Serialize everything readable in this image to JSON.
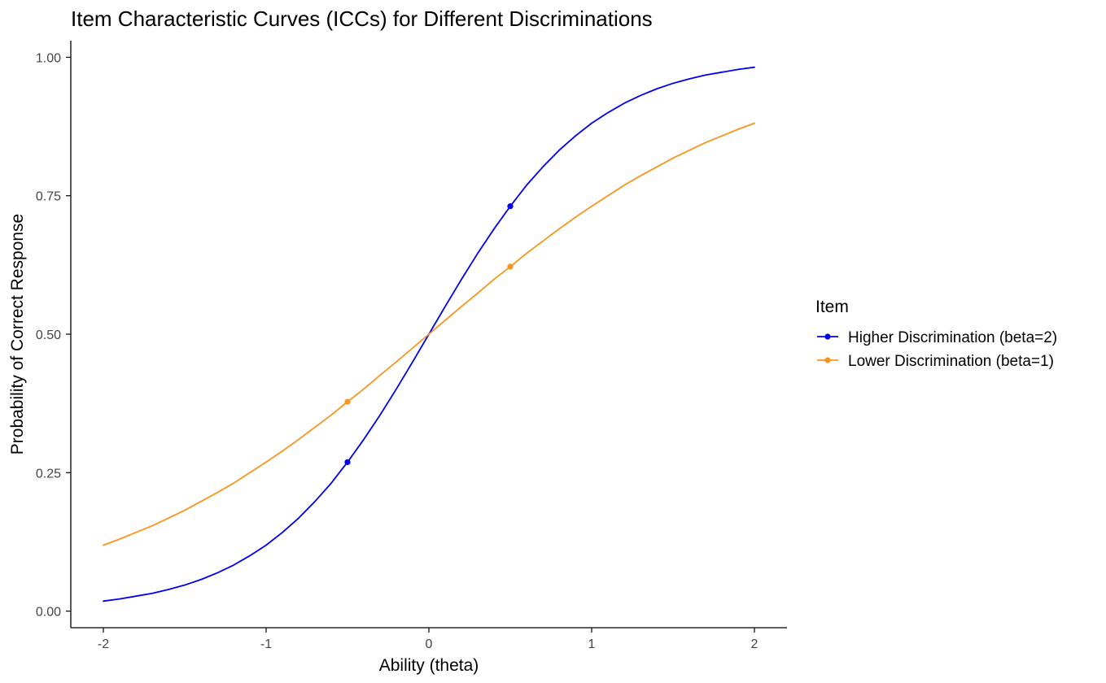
{
  "chart_data": {
    "type": "line",
    "title": "Item Characteristic Curves (ICCs) for Different Discriminations",
    "xlabel": "Ability (theta)",
    "ylabel": "Probability of Correct Response",
    "xlim": [
      -2.2,
      2.2
    ],
    "ylim": [
      -0.03,
      1.03
    ],
    "x_ticks": [
      -2,
      -1,
      0,
      1,
      2
    ],
    "x_tick_labels": [
      "-2",
      "-1",
      "0",
      "1",
      "2"
    ],
    "y_ticks": [
      0,
      0.25,
      0.5,
      0.75,
      1
    ],
    "y_tick_labels": [
      "0.00",
      "0.25",
      "0.50",
      "0.75",
      "1.00"
    ],
    "grid": false,
    "legend": {
      "title": "Item",
      "position": "right"
    },
    "series": [
      {
        "name": "Higher Discrimination (beta=2)",
        "color": "#0000ee",
        "x": [
          -2.0,
          -1.9,
          -1.8,
          -1.7,
          -1.6,
          -1.5,
          -1.4,
          -1.3,
          -1.2,
          -1.1,
          -1.0,
          -0.9,
          -0.8,
          -0.7,
          -0.6,
          -0.5,
          -0.4,
          -0.3,
          -0.2,
          -0.1,
          0.0,
          0.1,
          0.2,
          0.3,
          0.4,
          0.5,
          0.6,
          0.7,
          0.8,
          0.9,
          1.0,
          1.1,
          1.2,
          1.3,
          1.4,
          1.5,
          1.6,
          1.7,
          1.8,
          1.9,
          2.0
        ],
        "y": [
          0.018,
          0.022,
          0.027,
          0.032,
          0.039,
          0.047,
          0.057,
          0.069,
          0.083,
          0.1,
          0.119,
          0.142,
          0.168,
          0.198,
          0.231,
          0.269,
          0.31,
          0.354,
          0.401,
          0.45,
          0.5,
          0.55,
          0.599,
          0.646,
          0.69,
          0.731,
          0.769,
          0.802,
          0.832,
          0.858,
          0.881,
          0.9,
          0.917,
          0.931,
          0.943,
          0.953,
          0.961,
          0.968,
          0.973,
          0.978,
          0.982
        ],
        "points": [
          {
            "x": -0.5,
            "y": 0.269
          },
          {
            "x": 0.5,
            "y": 0.731
          }
        ]
      },
      {
        "name": "Lower Discrimination (beta=1)",
        "color": "#f7951d",
        "x": [
          -2.0,
          -1.9,
          -1.8,
          -1.7,
          -1.6,
          -1.5,
          -1.4,
          -1.3,
          -1.2,
          -1.1,
          -1.0,
          -0.9,
          -0.8,
          -0.7,
          -0.6,
          -0.5,
          -0.4,
          -0.3,
          -0.2,
          -0.1,
          0.0,
          0.1,
          0.2,
          0.3,
          0.4,
          0.5,
          0.6,
          0.7,
          0.8,
          0.9,
          1.0,
          1.1,
          1.2,
          1.3,
          1.4,
          1.5,
          1.6,
          1.7,
          1.8,
          1.9,
          2.0
        ],
        "y": [
          0.119,
          0.13,
          0.142,
          0.154,
          0.168,
          0.182,
          0.198,
          0.214,
          0.231,
          0.25,
          0.269,
          0.289,
          0.31,
          0.332,
          0.354,
          0.378,
          0.401,
          0.426,
          0.45,
          0.475,
          0.5,
          0.525,
          0.55,
          0.574,
          0.599,
          0.622,
          0.646,
          0.668,
          0.69,
          0.711,
          0.731,
          0.75,
          0.769,
          0.786,
          0.802,
          0.818,
          0.832,
          0.846,
          0.858,
          0.87,
          0.881
        ],
        "points": [
          {
            "x": -0.5,
            "y": 0.378
          },
          {
            "x": 0.5,
            "y": 0.622
          }
        ]
      }
    ]
  }
}
